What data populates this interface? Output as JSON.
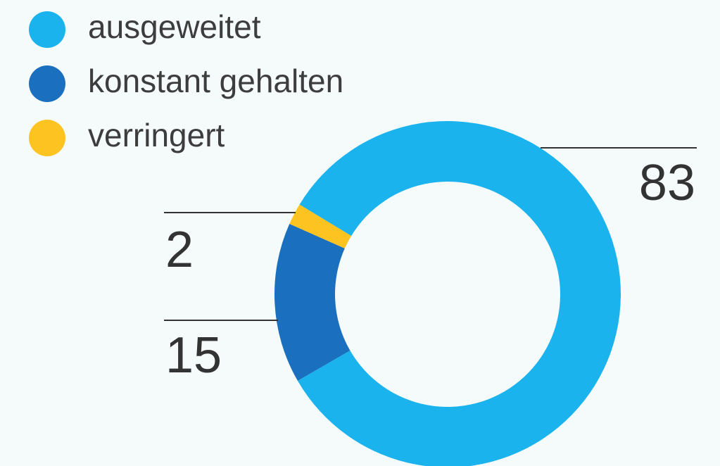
{
  "chart_data": {
    "type": "donut",
    "categories": [
      "ausgeweitet",
      "konstant gehalten",
      "verringert"
    ],
    "values": [
      83,
      15,
      2
    ],
    "colors": [
      "#1ab3ee",
      "#1a6fbf",
      "#fdc320"
    ],
    "legend": "top-left"
  }
}
